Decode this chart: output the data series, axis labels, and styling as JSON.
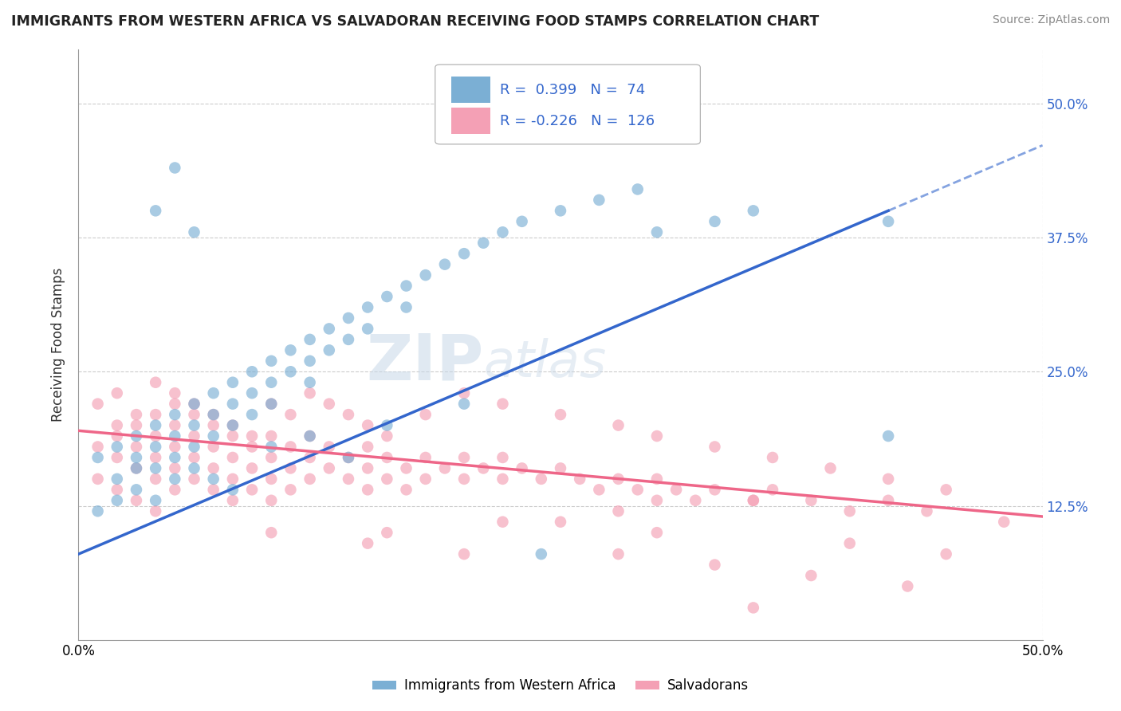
{
  "title": "IMMIGRANTS FROM WESTERN AFRICA VS SALVADORAN RECEIVING FOOD STAMPS CORRELATION CHART",
  "source": "Source: ZipAtlas.com",
  "ylabel": "Receiving Food Stamps",
  "y_ticks": [
    "12.5%",
    "25.0%",
    "37.5%",
    "50.0%"
  ],
  "y_tick_vals": [
    0.125,
    0.25,
    0.375,
    0.5
  ],
  "xlim": [
    0.0,
    0.5
  ],
  "ylim": [
    0.0,
    0.55
  ],
  "blue_R": 0.399,
  "blue_N": 74,
  "pink_R": -0.226,
  "pink_N": 126,
  "blue_color": "#7BAFD4",
  "pink_color": "#F4A0B5",
  "blue_line_color": "#3366CC",
  "pink_line_color": "#EE6688",
  "legend_blue_label": "Immigrants from Western Africa",
  "legend_pink_label": "Salvadorans",
  "watermark_zip": "ZIP",
  "watermark_atlas": "atlas",
  "blue_trend_x0": 0.0,
  "blue_trend_y0": 0.08,
  "blue_trend_x1": 0.42,
  "blue_trend_y1": 0.4,
  "pink_trend_x0": 0.0,
  "pink_trend_y0": 0.195,
  "pink_trend_x1": 0.5,
  "pink_trend_y1": 0.115
}
